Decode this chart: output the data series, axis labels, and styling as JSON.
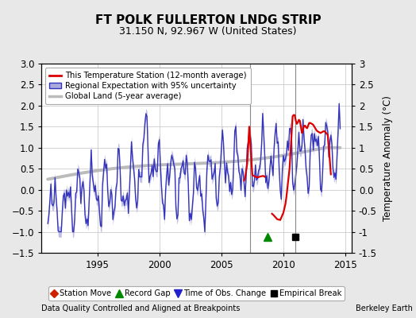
{
  "title": "FT POLK FULLERTON LNDG STRIP",
  "subtitle": "31.150 N, 92.967 W (United States)",
  "ylabel": "Temperature Anomaly (°C)",
  "footer_left": "Data Quality Controlled and Aligned at Breakpoints",
  "footer_right": "Berkeley Earth",
  "xlim": [
    1990.5,
    2015.5
  ],
  "ylim": [
    -1.5,
    3.0
  ],
  "yticks": [
    -1.5,
    -1.0,
    -0.5,
    0.0,
    0.5,
    1.0,
    1.5,
    2.0,
    2.5,
    3.0
  ],
  "xticks": [
    1995,
    2000,
    2005,
    2010,
    2015
  ],
  "bg_color": "#e8e8e8",
  "plot_bg_color": "#ffffff",
  "grid_color": "#cccccc",
  "regional_color": "#3333bb",
  "regional_fill_color": "#aaaadd",
  "global_color": "#bbbbbb",
  "station_color": "#dd0000",
  "vline_color": "#888888",
  "record_gap_x": 2008.75,
  "record_gap_y": -1.12,
  "empirical_break_x": 2010.95,
  "empirical_break_y": -1.12,
  "vline1_x": 2007.3,
  "vline2_x": 2010.95
}
